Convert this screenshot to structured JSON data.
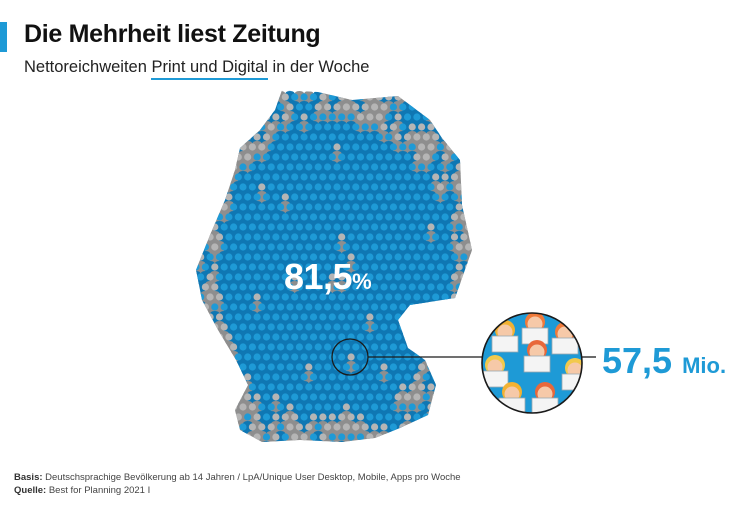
{
  "header": {
    "title": "Die Mehrheit liest Zeitung",
    "subtitle_pre": "Nettoreichweiten ",
    "subtitle_highlight": "Print und Digital",
    "subtitle_post": " in der Woche"
  },
  "colors": {
    "accent": "#1e9ad6",
    "reader_blue": "#1e9ad6",
    "reader_blue_dark": "#0f77b3",
    "nonreader_gray": "#b5b5b5",
    "nonreader_gray_dark": "#8e8e8e"
  },
  "chart_data": {
    "type": "pictogram",
    "title": "Die Mehrheit liest Zeitung",
    "subtitle": "Nettoreichweiten Print und Digital in der Woche",
    "share_value": "81,5",
    "share_unit": "%",
    "share_percent": 81.5,
    "absolute_value": "57,5",
    "absolute_unit": "Mio.",
    "absolute_millions": 57.5
  },
  "footer": {
    "basis_label": "Basis:",
    "basis_text": "Deutschsprachige Bevölkerung ab 14 Jahren / LpA/Unique User Desktop, Mobile, Apps pro Woche",
    "source_label": "Quelle:",
    "source_text": "Best for Planning 2021 I"
  }
}
